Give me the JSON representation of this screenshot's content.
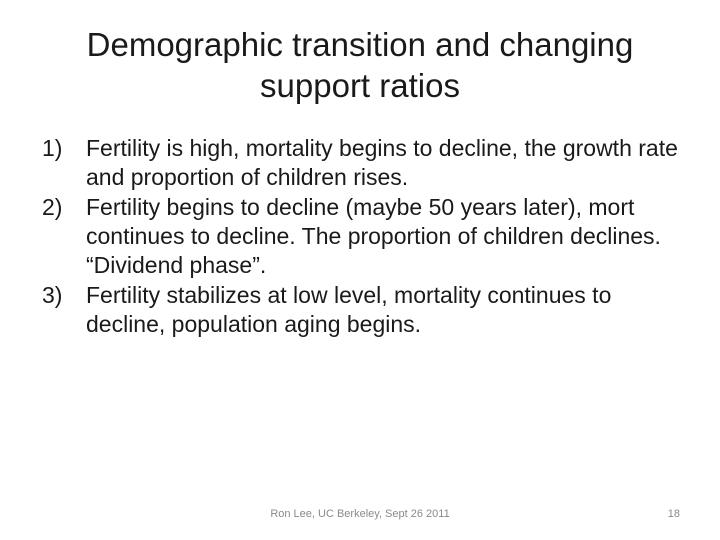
{
  "slide": {
    "title_lines": [
      "Demographic transition and changing",
      "support ratios"
    ],
    "items": [
      {
        "number": "1)",
        "text": "Fertility is high, mortality begins to decline, the growth rate and proportion of children rises."
      },
      {
        "number": "2)",
        "text": "Fertility begins to decline (maybe 50 years later), mort continues to decline. The proportion of children declines. “Dividend phase”."
      },
      {
        "number": "3)",
        "text": "Fertility stabilizes at low level, mortality continues to decline, population aging begins."
      }
    ],
    "footer": "Ron Lee, UC Berkeley, Sept 26 2011",
    "page_number": "18"
  }
}
